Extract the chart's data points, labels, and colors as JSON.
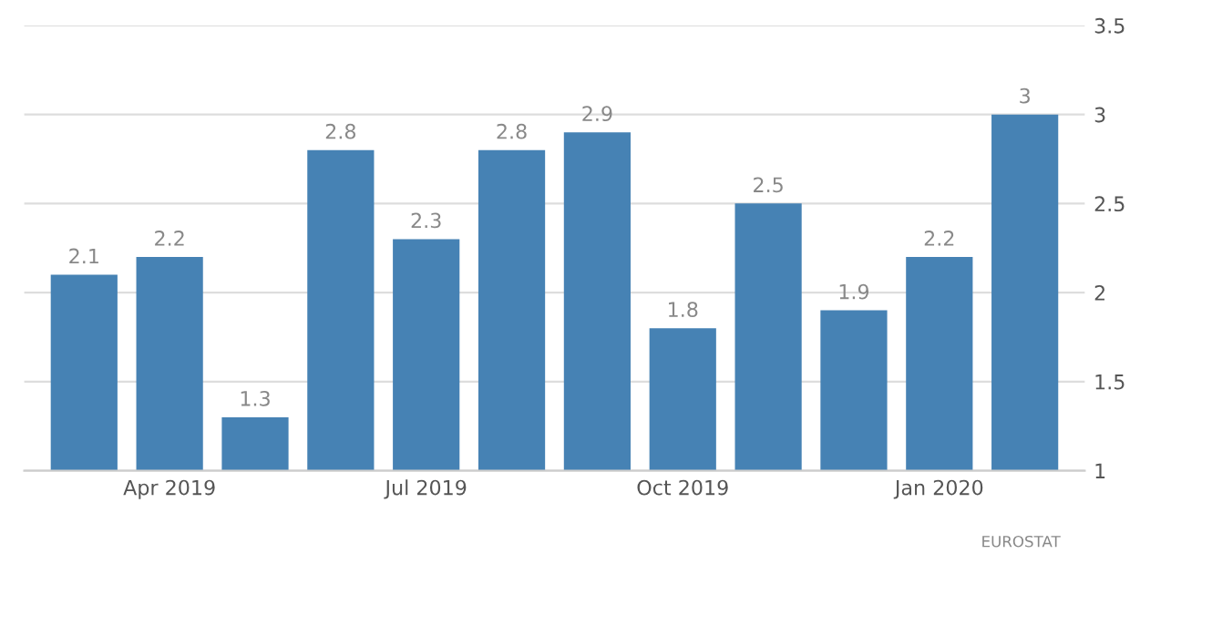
{
  "chart_data": {
    "type": "bar",
    "categories": [
      null,
      "Apr 2019",
      null,
      null,
      "Jul 2019",
      null,
      null,
      "Oct 2019",
      null,
      null,
      "Jan 2020",
      null
    ],
    "values": [
      2.1,
      2.2,
      1.3,
      2.8,
      2.3,
      2.8,
      2.9,
      1.8,
      2.5,
      1.9,
      2.2,
      3
    ],
    "color": "#4682b4",
    "ylim": [
      1,
      3.5
    ],
    "yticks": [
      1,
      1.5,
      2,
      2.5,
      3,
      3.5
    ],
    "grid": "y",
    "data_labels": true,
    "annotations": [
      "EUROSTAT"
    ]
  }
}
